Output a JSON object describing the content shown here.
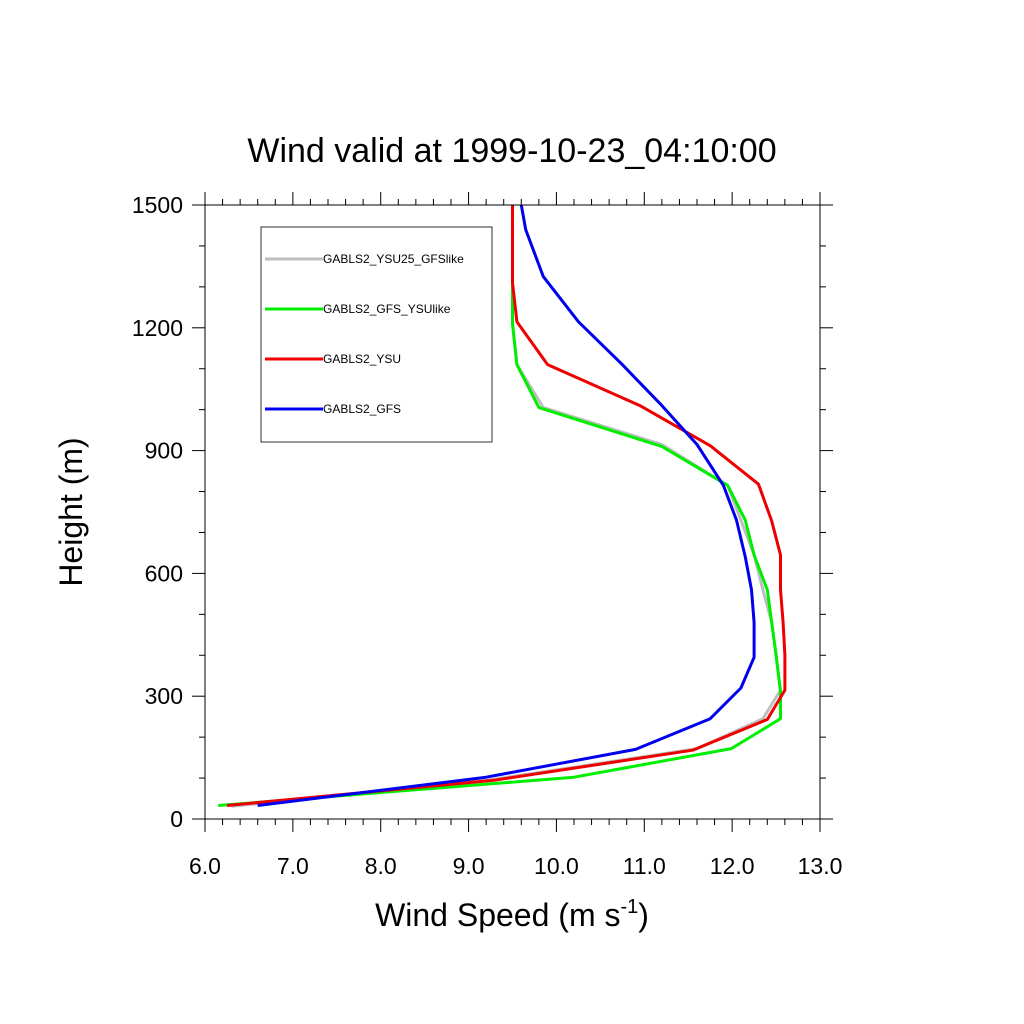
{
  "chart_data": {
    "type": "line",
    "title": "Wind valid at 1999-10-23_04:10:00",
    "xlabel": "Wind Speed (m s",
    "xlabel_superscript": "-1",
    "xlabel_suffix": ")",
    "ylabel": "Height (m)",
    "xlim": [
      6.0,
      13.0
    ],
    "ylim": [
      0,
      1500
    ],
    "xticks": [
      6.0,
      7.0,
      8.0,
      9.0,
      10.0,
      11.0,
      12.0,
      13.0
    ],
    "xtick_labels": [
      "6.0",
      "7.0",
      "8.0",
      "9.0",
      "10.0",
      "11.0",
      "12.0",
      "13.0"
    ],
    "yticks": [
      0,
      300,
      600,
      900,
      1200,
      1500
    ],
    "ytick_labels": [
      "0",
      "300",
      "600",
      "900",
      "1200",
      "1500"
    ],
    "grid": false,
    "legend_position": "top-left",
    "series": [
      {
        "name": "GABLS2_YSU25_GFSlike",
        "color": "#bebebe",
        "points": [
          [
            6.3,
            31
          ],
          [
            9.2,
            94
          ],
          [
            11.6,
            172
          ],
          [
            12.35,
            245
          ],
          [
            12.55,
            315
          ],
          [
            12.5,
            400
          ],
          [
            12.45,
            480
          ],
          [
            12.35,
            560
          ],
          [
            12.25,
            645
          ],
          [
            12.1,
            730
          ],
          [
            11.95,
            815
          ],
          [
            11.2,
            915
          ],
          [
            9.85,
            1005
          ],
          [
            9.55,
            1110
          ],
          [
            9.5,
            1210
          ],
          [
            9.5,
            1310
          ],
          [
            9.5,
            1400
          ],
          [
            9.5,
            1500
          ]
        ]
      },
      {
        "name": "GABLS2_GFS_YSUlike",
        "color": "#00ee00",
        "points": [
          [
            6.15,
            33
          ],
          [
            10.2,
            102
          ],
          [
            11.99,
            172
          ],
          [
            12.55,
            245
          ],
          [
            12.55,
            310
          ],
          [
            12.5,
            400
          ],
          [
            12.45,
            480
          ],
          [
            12.4,
            560
          ],
          [
            12.25,
            645
          ],
          [
            12.15,
            730
          ],
          [
            11.95,
            815
          ],
          [
            11.2,
            910
          ],
          [
            9.8,
            1005
          ],
          [
            9.55,
            1110
          ],
          [
            9.5,
            1210
          ],
          [
            9.5,
            1310
          ],
          [
            9.5,
            1400
          ],
          [
            9.5,
            1500
          ]
        ]
      },
      {
        "name": "GABLS2_YSU",
        "color": "#ee0000",
        "points": [
          [
            6.25,
            33
          ],
          [
            9.3,
            95
          ],
          [
            11.55,
            168
          ],
          [
            12.4,
            243
          ],
          [
            12.6,
            315
          ],
          [
            12.6,
            400
          ],
          [
            12.58,
            480
          ],
          [
            12.55,
            560
          ],
          [
            12.55,
            645
          ],
          [
            12.45,
            728
          ],
          [
            12.3,
            818
          ],
          [
            11.75,
            912
          ],
          [
            10.95,
            1010
          ],
          [
            9.9,
            1110
          ],
          [
            9.55,
            1215
          ],
          [
            9.5,
            1310
          ],
          [
            9.5,
            1400
          ],
          [
            9.5,
            1500
          ]
        ]
      },
      {
        "name": "GABLS2_GFS",
        "color": "#0000ee",
        "points": [
          [
            6.6,
            33
          ],
          [
            9.2,
            102
          ],
          [
            10.9,
            170
          ],
          [
            11.75,
            245
          ],
          [
            12.1,
            320
          ],
          [
            12.25,
            395
          ],
          [
            12.25,
            480
          ],
          [
            12.22,
            560
          ],
          [
            12.15,
            640
          ],
          [
            12.05,
            730
          ],
          [
            11.9,
            815
          ],
          [
            11.6,
            915
          ],
          [
            11.2,
            1010
          ],
          [
            10.75,
            1110
          ],
          [
            10.25,
            1215
          ],
          [
            9.85,
            1325
          ],
          [
            9.65,
            1440
          ],
          [
            9.6,
            1500
          ]
        ]
      }
    ]
  }
}
